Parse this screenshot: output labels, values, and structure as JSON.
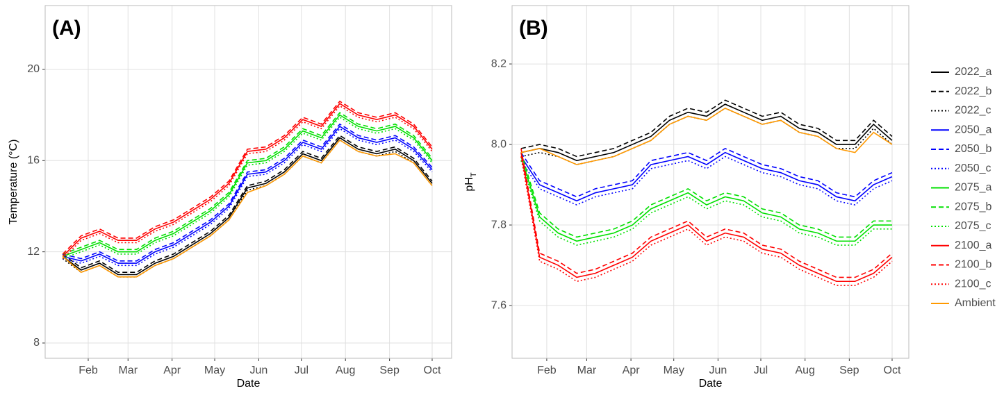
{
  "chart_data": [
    {
      "type": "line",
      "panel_label": "(A)",
      "x_label": "Date",
      "y_label": "Temperature (°C)",
      "xlim": [
        1.7,
        287.7
      ],
      "ylim": [
        7.33,
        22.8
      ],
      "grid": true,
      "legend": false,
      "xticks": [
        {
          "value": 32,
          "label": "Feb"
        },
        {
          "value": 60,
          "label": "Mar"
        },
        {
          "value": 91,
          "label": "Apr"
        },
        {
          "value": 121,
          "label": "May"
        },
        {
          "value": 152,
          "label": "Jun"
        },
        {
          "value": 182,
          "label": "Jul"
        },
        {
          "value": 213,
          "label": "Aug"
        },
        {
          "value": 244,
          "label": "Sep"
        },
        {
          "value": 274,
          "label": "Oct"
        }
      ],
      "yticks": [
        8,
        12,
        16,
        20
      ],
      "x": [
        14,
        27,
        40,
        53,
        66,
        79,
        92,
        105,
        118,
        131,
        144,
        157,
        170,
        183,
        196,
        209,
        222,
        235,
        248,
        261,
        274
      ],
      "series": [
        {
          "name": "2022_a",
          "color": "#000000",
          "dash": "solid",
          "values": [
            11.8,
            11.2,
            11.5,
            11.0,
            11.0,
            11.5,
            11.8,
            12.3,
            12.8,
            13.5,
            14.8,
            15.0,
            15.5,
            16.3,
            16.0,
            17.0,
            16.5,
            16.3,
            16.5,
            16.0,
            15.0
          ]
        },
        {
          "name": "2022_b",
          "color": "#000000",
          "dash": "dashed",
          "values": [
            11.9,
            11.3,
            11.6,
            11.1,
            11.1,
            11.6,
            11.9,
            12.4,
            12.9,
            13.6,
            14.9,
            15.1,
            15.6,
            16.4,
            16.1,
            17.1,
            16.6,
            16.4,
            16.6,
            16.1,
            15.1
          ]
        },
        {
          "name": "2022_c",
          "color": "#000000",
          "dash": "dotted",
          "values": [
            11.7,
            11.1,
            11.4,
            10.9,
            10.9,
            11.4,
            11.7,
            12.2,
            12.7,
            13.4,
            14.7,
            14.9,
            15.4,
            16.2,
            15.9,
            16.9,
            16.4,
            16.2,
            16.4,
            15.9,
            14.9
          ]
        },
        {
          "name": "2050_a",
          "color": "#0000ff",
          "dash": "solid",
          "values": [
            11.8,
            11.6,
            11.9,
            11.5,
            11.5,
            12.0,
            12.3,
            12.8,
            13.3,
            14.0,
            15.4,
            15.5,
            16.0,
            16.8,
            16.5,
            17.5,
            17.0,
            16.8,
            17.0,
            16.5,
            15.6
          ]
        },
        {
          "name": "2050_b",
          "color": "#0000ff",
          "dash": "dashed",
          "values": [
            11.9,
            11.7,
            12.0,
            11.6,
            11.6,
            12.1,
            12.4,
            12.9,
            13.4,
            14.1,
            15.5,
            15.6,
            16.1,
            16.9,
            16.6,
            17.6,
            17.1,
            16.9,
            17.1,
            16.6,
            15.7
          ]
        },
        {
          "name": "2050_c",
          "color": "#0000ff",
          "dash": "dotted",
          "values": [
            11.7,
            11.5,
            11.8,
            11.4,
            11.4,
            11.9,
            12.2,
            12.7,
            13.2,
            13.9,
            15.3,
            15.4,
            15.9,
            16.7,
            16.4,
            17.4,
            16.9,
            16.7,
            16.9,
            16.4,
            15.5
          ]
        },
        {
          "name": "2075_a",
          "color": "#00e000",
          "dash": "solid",
          "values": [
            11.8,
            12.1,
            12.4,
            12.0,
            12.0,
            12.5,
            12.8,
            13.3,
            13.8,
            14.5,
            15.9,
            16.0,
            16.5,
            17.3,
            17.0,
            18.0,
            17.5,
            17.3,
            17.5,
            17.0,
            16.0
          ]
        },
        {
          "name": "2075_b",
          "color": "#00e000",
          "dash": "dashed",
          "values": [
            11.9,
            12.2,
            12.5,
            12.1,
            12.1,
            12.6,
            12.9,
            13.4,
            13.9,
            14.6,
            16.0,
            16.1,
            16.6,
            17.4,
            17.1,
            18.1,
            17.6,
            17.4,
            17.6,
            17.1,
            16.1
          ]
        },
        {
          "name": "2075_c",
          "color": "#00e000",
          "dash": "dotted",
          "values": [
            11.7,
            12.0,
            12.3,
            11.9,
            11.9,
            12.4,
            12.7,
            13.2,
            13.7,
            14.4,
            15.8,
            15.9,
            16.4,
            17.2,
            16.9,
            17.9,
            17.4,
            17.2,
            17.4,
            16.9,
            15.9
          ]
        },
        {
          "name": "2100_a",
          "color": "#ff0000",
          "dash": "solid",
          "values": [
            11.8,
            12.6,
            12.9,
            12.5,
            12.5,
            13.0,
            13.3,
            13.8,
            14.3,
            15.0,
            16.4,
            16.5,
            17.0,
            17.8,
            17.5,
            18.5,
            18.0,
            17.8,
            18.0,
            17.5,
            16.5
          ]
        },
        {
          "name": "2100_b",
          "color": "#ff0000",
          "dash": "dashed",
          "values": [
            11.9,
            12.7,
            13.0,
            12.6,
            12.6,
            13.1,
            13.4,
            13.9,
            14.4,
            15.1,
            16.5,
            16.6,
            17.1,
            17.9,
            17.6,
            18.6,
            18.1,
            17.9,
            18.1,
            17.6,
            16.6
          ]
        },
        {
          "name": "2100_c",
          "color": "#ff0000",
          "dash": "dotted",
          "values": [
            11.7,
            12.5,
            12.8,
            12.4,
            12.4,
            12.9,
            13.2,
            13.7,
            14.2,
            14.9,
            16.3,
            16.4,
            16.9,
            17.7,
            17.4,
            18.4,
            17.9,
            17.7,
            17.9,
            17.4,
            16.4
          ]
        },
        {
          "name": "Ambient",
          "color": "#ff9900",
          "dash": "solid",
          "values": [
            11.8,
            11.1,
            11.4,
            10.9,
            10.9,
            11.4,
            11.7,
            12.2,
            12.7,
            13.4,
            14.6,
            14.9,
            15.4,
            16.2,
            15.9,
            16.9,
            16.4,
            16.2,
            16.3,
            15.9,
            14.9
          ]
        }
      ]
    },
    {
      "type": "line",
      "panel_label": "(B)",
      "x_label": "Date",
      "y_label": "pH",
      "y_label_subscript": "T",
      "xlim": [
        7.7,
        285.7
      ],
      "ylim": [
        7.469,
        8.345
      ],
      "grid": true,
      "legend": "right",
      "xticks": [
        {
          "value": 32,
          "label": "Feb"
        },
        {
          "value": 60,
          "label": "Mar"
        },
        {
          "value": 91,
          "label": "Apr"
        },
        {
          "value": 121,
          "label": "May"
        },
        {
          "value": 152,
          "label": "Jun"
        },
        {
          "value": 182,
          "label": "Jul"
        },
        {
          "value": 213,
          "label": "Aug"
        },
        {
          "value": 244,
          "label": "Sep"
        },
        {
          "value": 274,
          "label": "Oct"
        }
      ],
      "yticks": [
        7.6,
        7.8,
        {
          "value": 8,
          "label": "8.0"
        },
        8.2
      ],
      "x": [
        14,
        27,
        40,
        53,
        66,
        79,
        92,
        105,
        118,
        131,
        144,
        157,
        170,
        183,
        196,
        209,
        222,
        235,
        248,
        261,
        274
      ],
      "series": [
        {
          "name": "2022_a",
          "color": "#000000",
          "dash": "solid",
          "values": [
            7.98,
            7.99,
            7.98,
            7.96,
            7.97,
            7.98,
            8.0,
            8.02,
            8.06,
            8.08,
            8.07,
            8.1,
            8.08,
            8.06,
            8.07,
            8.04,
            8.03,
            8.0,
            8.0,
            8.05,
            8.01
          ]
        },
        {
          "name": "2022_b",
          "color": "#000000",
          "dash": "dashed",
          "values": [
            7.99,
            8.0,
            7.99,
            7.97,
            7.98,
            7.99,
            8.01,
            8.03,
            8.07,
            8.09,
            8.08,
            8.11,
            8.09,
            8.07,
            8.08,
            8.05,
            8.04,
            8.01,
            8.01,
            8.06,
            8.02
          ]
        },
        {
          "name": "2022_c",
          "color": "#000000",
          "dash": "dotted",
          "values": [
            7.97,
            7.98,
            7.97,
            7.95,
            7.96,
            7.97,
            7.99,
            8.01,
            8.05,
            8.07,
            8.06,
            8.09,
            8.07,
            8.05,
            8.06,
            8.03,
            8.02,
            7.99,
            7.99,
            8.04,
            8.0
          ]
        },
        {
          "name": "2050_a",
          "color": "#0000ff",
          "dash": "solid",
          "values": [
            7.97,
            7.9,
            7.88,
            7.86,
            7.88,
            7.89,
            7.9,
            7.95,
            7.96,
            7.97,
            7.95,
            7.98,
            7.96,
            7.94,
            7.93,
            7.91,
            7.9,
            7.87,
            7.86,
            7.9,
            7.92
          ]
        },
        {
          "name": "2050_b",
          "color": "#0000ff",
          "dash": "dashed",
          "values": [
            7.98,
            7.91,
            7.89,
            7.87,
            7.89,
            7.9,
            7.91,
            7.96,
            7.97,
            7.98,
            7.96,
            7.99,
            7.97,
            7.95,
            7.94,
            7.92,
            7.91,
            7.88,
            7.87,
            7.91,
            7.93
          ]
        },
        {
          "name": "2050_c",
          "color": "#0000ff",
          "dash": "dotted",
          "values": [
            7.96,
            7.89,
            7.87,
            7.85,
            7.87,
            7.88,
            7.89,
            7.94,
            7.95,
            7.96,
            7.94,
            7.97,
            7.95,
            7.93,
            7.92,
            7.9,
            7.89,
            7.86,
            7.85,
            7.89,
            7.91
          ]
        },
        {
          "name": "2075_a",
          "color": "#00e000",
          "dash": "solid",
          "values": [
            7.97,
            7.82,
            7.78,
            7.76,
            7.77,
            7.78,
            7.8,
            7.84,
            7.86,
            7.88,
            7.85,
            7.87,
            7.86,
            7.83,
            7.82,
            7.79,
            7.78,
            7.76,
            7.76,
            7.8,
            7.8
          ]
        },
        {
          "name": "2075_b",
          "color": "#00e000",
          "dash": "dashed",
          "values": [
            7.98,
            7.83,
            7.79,
            7.77,
            7.78,
            7.79,
            7.81,
            7.85,
            7.87,
            7.89,
            7.86,
            7.88,
            7.87,
            7.84,
            7.83,
            7.8,
            7.79,
            7.77,
            7.77,
            7.81,
            7.81
          ]
        },
        {
          "name": "2075_c",
          "color": "#00e000",
          "dash": "dotted",
          "values": [
            7.96,
            7.81,
            7.77,
            7.75,
            7.76,
            7.77,
            7.79,
            7.83,
            7.85,
            7.87,
            7.84,
            7.86,
            7.85,
            7.82,
            7.81,
            7.78,
            7.77,
            7.75,
            7.75,
            7.79,
            7.79
          ]
        },
        {
          "name": "2100_a",
          "color": "#ff0000",
          "dash": "solid",
          "values": [
            7.98,
            7.72,
            7.7,
            7.67,
            7.68,
            7.7,
            7.72,
            7.76,
            7.78,
            7.8,
            7.76,
            7.78,
            7.77,
            7.74,
            7.73,
            7.7,
            7.68,
            7.66,
            7.66,
            7.68,
            7.72
          ]
        },
        {
          "name": "2100_b",
          "color": "#ff0000",
          "dash": "dashed",
          "values": [
            7.99,
            7.73,
            7.71,
            7.68,
            7.69,
            7.71,
            7.73,
            7.77,
            7.79,
            7.81,
            7.77,
            7.79,
            7.78,
            7.75,
            7.74,
            7.71,
            7.69,
            7.67,
            7.67,
            7.69,
            7.73
          ]
        },
        {
          "name": "2100_c",
          "color": "#ff0000",
          "dash": "dotted",
          "values": [
            7.97,
            7.71,
            7.69,
            7.66,
            7.67,
            7.69,
            7.71,
            7.75,
            7.77,
            7.79,
            7.75,
            7.77,
            7.76,
            7.73,
            7.72,
            7.69,
            7.67,
            7.65,
            7.65,
            7.67,
            7.71
          ]
        },
        {
          "name": "Ambient",
          "color": "#ff9900",
          "dash": "solid",
          "values": [
            7.98,
            7.99,
            7.97,
            7.95,
            7.96,
            7.97,
            7.99,
            8.01,
            8.05,
            8.07,
            8.06,
            8.09,
            8.07,
            8.05,
            8.06,
            8.03,
            8.02,
            7.99,
            7.98,
            8.03,
            8.0
          ]
        }
      ]
    }
  ]
}
